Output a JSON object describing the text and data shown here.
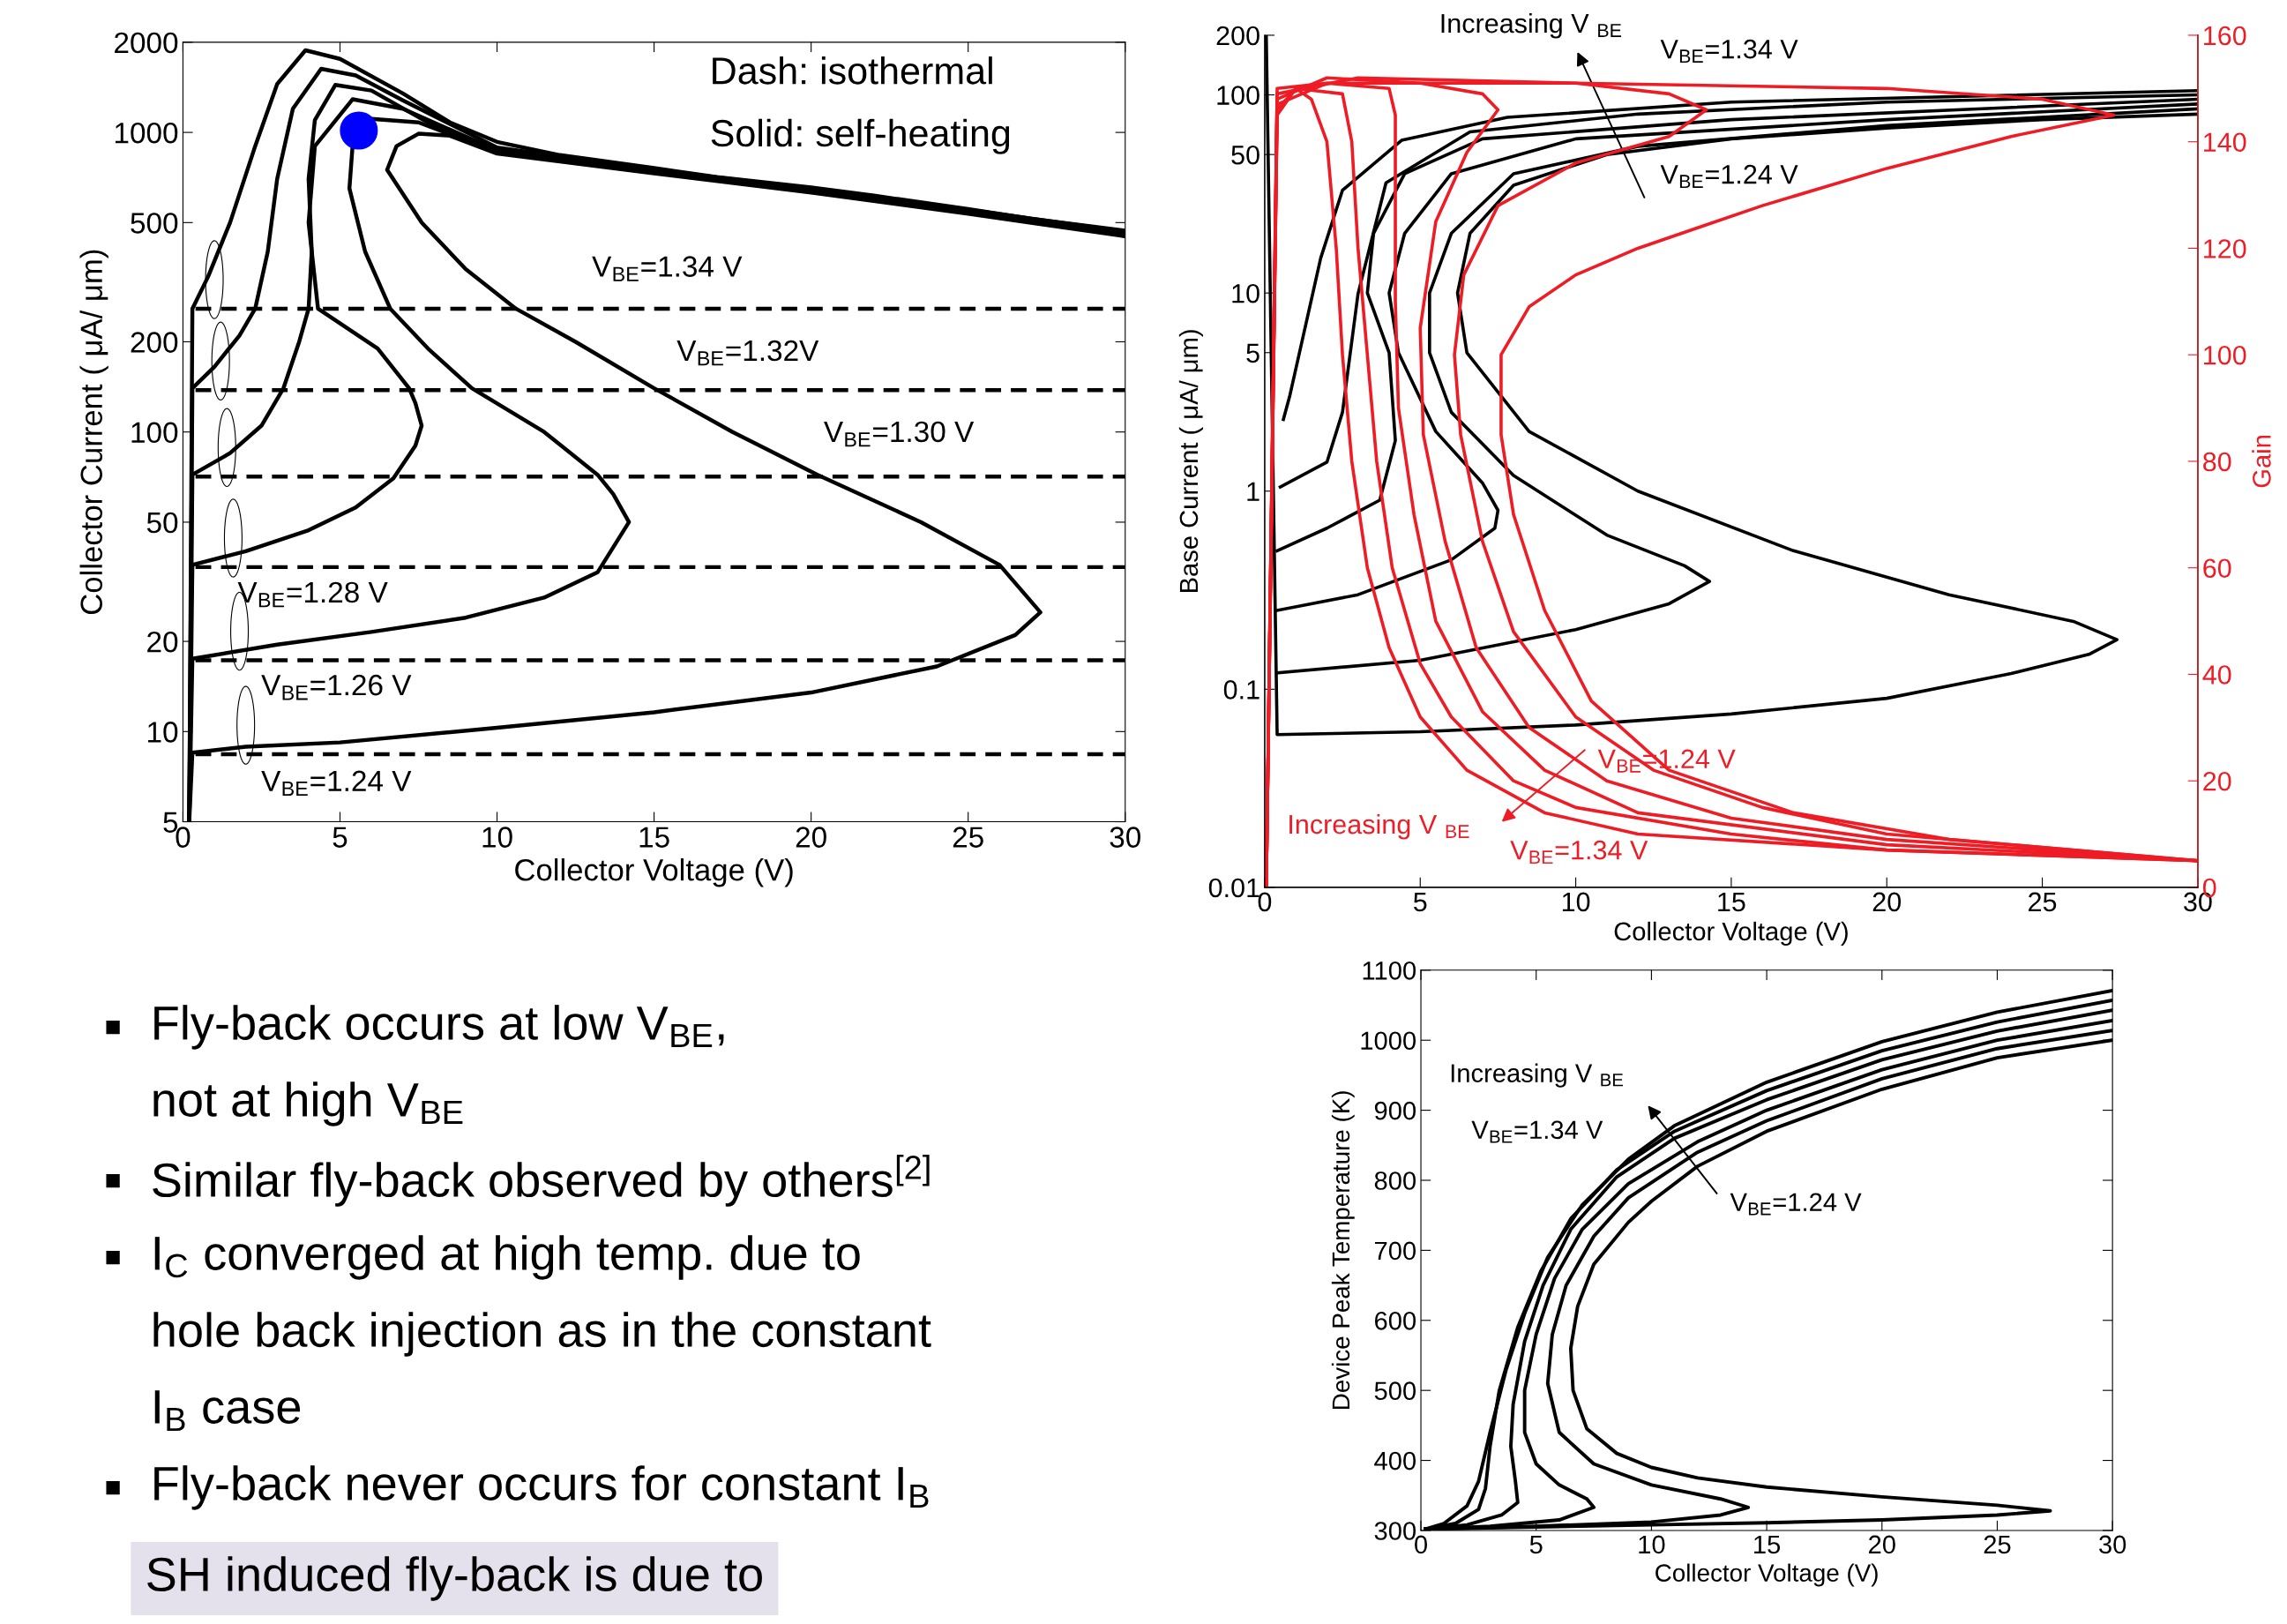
{
  "chart_data": [
    {
      "type": "line",
      "xlabel": "Collector Voltage (V)",
      "ylabel": "Collector Current ( μA/ μm)",
      "xlim": [
        0,
        30
      ],
      "xticks": [
        0,
        5,
        10,
        15,
        20,
        25,
        30
      ],
      "ylim": [
        5,
        2000
      ],
      "yticks": [
        5,
        10,
        20,
        50,
        100,
        200,
        500,
        1000,
        2000
      ],
      "log": "y",
      "grid": false,
      "legend": false,
      "marker": "none",
      "line_style": "solid",
      "series": [
        {
          "color": "#000000",
          "x": [
            0.2,
            0.3,
            2,
            5,
            10,
            15,
            20,
            24,
            26.5,
            27.3,
            26,
            23.5,
            20.2,
            17.5,
            15,
            12.5,
            10.6,
            9,
            7.6,
            6.5,
            6.8,
            7.5,
            8.5,
            10,
            15,
            20,
            25,
            30
          ],
          "values": [
            5,
            8.5,
            8.9,
            9.2,
            10.3,
            11.6,
            13.5,
            16.5,
            21,
            25,
            36,
            50,
            72,
            100,
            140,
            200,
            258,
            350,
            500,
            750,
            900,
            990,
            975,
            850,
            730,
            630,
            535,
            450
          ]
        },
        {
          "color": "#000000",
          "x": [
            0.2,
            0.3,
            3,
            6,
            9,
            11.5,
            13.2,
            14.2,
            13.7,
            13.2,
            11.5,
            9.2,
            7.8,
            6.6,
            5.8,
            5.3,
            5.4,
            6.0,
            7.5,
            10,
            15,
            20,
            25,
            30
          ],
          "values": [
            5,
            17.5,
            19.5,
            21.5,
            24,
            28,
            34,
            50,
            62,
            72,
            100,
            140,
            190,
            258,
            400,
            650,
            900,
            1110,
            1080,
            860,
            735,
            635,
            540,
            454
          ]
        },
        {
          "color": "#000000",
          "x": [
            0.2,
            0.3,
            2,
            4,
            5.5,
            6.7,
            7.4,
            7.6,
            7.4,
            7.2,
            6.2,
            4.3,
            4.0,
            4.2,
            5.4,
            7,
            10,
            15,
            20,
            25,
            30
          ],
          "values": [
            5,
            36,
            40,
            47,
            56,
            70,
            90,
            105,
            125,
            140,
            190,
            258,
            500,
            900,
            1290,
            1200,
            870,
            740,
            640,
            545,
            458
          ]
        },
        {
          "color": "#000000",
          "x": [
            0.2,
            0.3,
            1.5,
            2.5,
            3.2,
            3.7,
            4.0,
            4.1,
            4.0,
            4.2,
            4.85,
            6,
            8,
            10,
            15,
            20,
            25,
            30
          ],
          "values": [
            5,
            72,
            85,
            105,
            140,
            200,
            258,
            400,
            700,
            1100,
            1440,
            1380,
            1050,
            880,
            745,
            645,
            548,
            462
          ]
        },
        {
          "color": "#000000",
          "x": [
            0.2,
            0.3,
            1,
            1.8,
            2.3,
            2.7,
            3.0,
            3.5,
            4.4,
            5.5,
            7,
            10,
            15,
            20,
            25,
            30
          ],
          "values": [
            5,
            140,
            165,
            210,
            258,
            400,
            700,
            1200,
            1630,
            1550,
            1280,
            890,
            750,
            650,
            552,
            466
          ]
        },
        {
          "color": "#000000",
          "x": [
            0.2,
            0.3,
            0.8,
            1.5,
            2.3,
            3,
            3.9,
            5,
            7,
            8.5,
            10,
            12,
            15,
            17,
            20,
            22,
            25,
            27,
            30
          ],
          "values": [
            5,
            258,
            330,
            500,
            900,
            1450,
            1880,
            1760,
            1350,
            1080,
            930,
            840,
            760,
            710,
            655,
            615,
            555,
            515,
            470
          ]
        },
        {
          "color": "#000000",
          "line_style": "dashed",
          "x": [
            0.4,
            30
          ],
          "values": [
            8.4,
            8.4
          ]
        },
        {
          "color": "#000000",
          "line_style": "dashed",
          "x": [
            0.4,
            30
          ],
          "values": [
            17.3,
            17.3
          ]
        },
        {
          "color": "#000000",
          "line_style": "dashed",
          "x": [
            0.4,
            30
          ],
          "values": [
            35.4,
            35.4
          ]
        },
        {
          "color": "#000000",
          "line_style": "dashed",
          "x": [
            0.4,
            30
          ],
          "values": [
            71,
            71
          ]
        },
        {
          "color": "#000000",
          "line_style": "dashed",
          "x": [
            0.4,
            30
          ],
          "values": [
            138,
            138
          ]
        },
        {
          "color": "#000000",
          "line_style": "dashed",
          "x": [
            0.4,
            30
          ],
          "values": [
            258,
            258
          ]
        },
        {
          "type": "scatter",
          "color": "#0000ff",
          "marker": "circle",
          "x": [
            5.6
          ],
          "values": [
            1014
          ]
        }
      ],
      "annotations": [
        "V$_{BE}$=1.34 V",
        "V$_{BE}$=1.32V",
        "V$_{BE}$=1.30 V",
        "V$_{BE}$=1.28 V",
        "V$_{BE}$=1.26 V",
        "V$_{BE}$=1.24 V",
        "Dash: isothermal",
        "Solid: self-heating"
      ]
    },
    {
      "type": "line",
      "xlabel": "Collector Voltage (V)",
      "ylabel": "Base Current ( μA/ μm)",
      "y2label": "Gain",
      "xlim": [
        0,
        30
      ],
      "xticks": [
        0,
        5,
        10,
        15,
        20,
        25,
        30
      ],
      "ylim": [
        0.01,
        200
      ],
      "yticks": [
        0.01,
        0.1,
        1,
        5,
        10,
        50,
        100,
        200
      ],
      "log": "y",
      "y2lim": [
        0,
        160
      ],
      "y2ticks": [
        0,
        20,
        40,
        60,
        80,
        100,
        120,
        140,
        160
      ],
      "grid": false,
      "legend": false,
      "marker": "none",
      "line_style": "solid",
      "series": [
        {
          "color": "#000000",
          "x": [
            0.05,
            0.4,
            5,
            10,
            15,
            20,
            24,
            26.5,
            27.4,
            26,
            22,
            17,
            12,
            8.5,
            6.5,
            6.2,
            6.6,
            8,
            11,
            15,
            20,
            25,
            30
          ],
          "values": [
            200,
            0.059,
            0.061,
            0.066,
            0.075,
            0.09,
            0.12,
            0.15,
            0.178,
            0.22,
            0.3,
            0.5,
            1.0,
            2.0,
            5,
            10,
            20,
            35,
            50,
            60,
            68,
            75,
            80
          ]
        },
        {
          "color": "#000000",
          "x": [
            0.4,
            5,
            10,
            13,
            14.3,
            13.5,
            11,
            8,
            6,
            5.3,
            5.3,
            6,
            8,
            12,
            20,
            30
          ],
          "values": [
            0.121,
            0.14,
            0.2,
            0.27,
            0.35,
            0.42,
            0.6,
            1.2,
            2.5,
            5,
            10,
            20,
            40,
            55,
            70,
            85
          ]
        },
        {
          "color": "#000000",
          "x": [
            0.4,
            3,
            6,
            7.4,
            7.5,
            7,
            5.5,
            4.3,
            4.0,
            4.5,
            6,
            10,
            20,
            30
          ],
          "values": [
            0.25,
            0.3,
            0.45,
            0.65,
            0.8,
            1.1,
            2,
            5,
            10,
            20,
            40,
            60,
            75,
            90
          ]
        },
        {
          "color": "#000000",
          "x": [
            0.4,
            2,
            3.7,
            4.2,
            4.0,
            3.3,
            3.5,
            4.5,
            7,
            15,
            30
          ],
          "values": [
            0.5,
            0.65,
            0.9,
            1.8,
            5,
            10,
            20,
            40,
            60,
            75,
            95
          ]
        },
        {
          "color": "#000000",
          "x": [
            0.5,
            2,
            2.5,
            3.0,
            3.9,
            6.6,
            12,
            20,
            30
          ],
          "values": [
            1.05,
            1.4,
            2.5,
            9.9,
            36,
            65,
            80,
            92,
            100
          ]
        },
        {
          "color": "#000000",
          "x": [
            0.6,
            0.8,
            1.8,
            2.5,
            4.4,
            7.8,
            15,
            30
          ],
          "values": [
            2.3,
            3,
            15,
            33,
            59,
            77,
            92,
            105
          ]
        },
        {
          "color": "#ee1c25",
          "axis": "y2",
          "x": [
            0.05,
            0.4,
            2,
            10,
            20,
            25,
            27.3,
            24,
            20,
            16,
            14,
            12,
            10,
            8.5,
            7.6,
            7.6,
            8,
            9,
            10.5,
            13,
            17,
            22,
            30
          ],
          "values": [
            0,
            150,
            151,
            151,
            150,
            148,
            145,
            141,
            135,
            128,
            124,
            120,
            115,
            109,
            100,
            85,
            70,
            52,
            35,
            22,
            14,
            9,
            5
          ]
        },
        {
          "color": "#ee1c25",
          "axis": "y2",
          "x": [
            0.05,
            0.4,
            3,
            10,
            13,
            14.2,
            13,
            10,
            7.5,
            6.4,
            6.1,
            6.3,
            7,
            8,
            10,
            12.5,
            16,
            20,
            30
          ],
          "values": [
            0,
            149,
            152,
            151,
            149,
            146,
            141,
            136,
            128,
            115,
            100,
            85,
            65,
            48,
            32,
            22,
            15,
            10,
            5
          ]
        },
        {
          "color": "#ee1c25",
          "axis": "y2",
          "x": [
            0.05,
            0.4,
            2,
            5,
            7,
            7.5,
            6.5,
            5.5,
            5.0,
            5.1,
            5.8,
            6.8,
            8.5,
            11,
            15,
            20,
            30
          ],
          "values": [
            0,
            148,
            152,
            151,
            149,
            146,
            138,
            125,
            105,
            85,
            65,
            45,
            30,
            20,
            13,
            9,
            5
          ]
        },
        {
          "color": "#ee1c25",
          "axis": "y2",
          "x": [
            0.05,
            0.4,
            2,
            4,
            4.2,
            4.2,
            4.2,
            4.3,
            4.8,
            5.5,
            7,
            9,
            12,
            20,
            30
          ],
          "values": [
            0,
            147,
            151,
            150,
            145,
            130,
            110,
            90,
            70,
            50,
            33,
            22,
            14,
            8,
            5
          ]
        },
        {
          "color": "#ee1c25",
          "axis": "y2",
          "x": [
            0.05,
            0.4,
            1,
            2.5,
            2.8,
            3,
            3.3,
            3.6,
            4.1,
            5,
            6,
            8,
            10,
            15,
            20,
            30
          ],
          "values": [
            0,
            146,
            150,
            149,
            140,
            120,
            100,
            80,
            60,
            42,
            32,
            20,
            15,
            10,
            7,
            5
          ]
        },
        {
          "color": "#ee1c25",
          "axis": "y2",
          "x": [
            0.05,
            0.4,
            1,
            1.5,
            2,
            2.3,
            2.5,
            2.8,
            3.3,
            4,
            5,
            6.5,
            9,
            12,
            20,
            30
          ],
          "values": [
            0,
            145,
            150,
            148,
            140,
            120,
            100,
            80,
            60,
            45,
            32,
            22,
            14,
            10,
            7,
            5
          ]
        }
      ],
      "annotations": [
        "Increasing V $_{BE}$",
        "V$_{BE}$=1.34 V",
        "V$_{BE}$=1.24 V",
        "V$_{BE}$=1.24 V",
        "Increasing V $_{BE}$",
        "V$_{BE}$=1.34 V"
      ]
    },
    {
      "type": "line",
      "xlabel": "Collector Voltage (V)",
      "ylabel": "Device Peak Temperature (K)",
      "xlim": [
        0,
        30
      ],
      "xticks": [
        0,
        5,
        10,
        15,
        20,
        25,
        30
      ],
      "ylim": [
        300,
        1100
      ],
      "yticks": [
        300,
        400,
        500,
        600,
        700,
        800,
        900,
        1000,
        1100
      ],
      "grid": false,
      "legend": false,
      "marker": "none",
      "line_style": "solid",
      "series": [
        {
          "color": "#000000",
          "x": [
            0.2,
            5,
            10,
            15,
            20,
            25,
            27.3,
            25,
            20,
            15,
            12,
            10,
            8.5,
            7.2,
            6.6,
            6.5,
            6.8,
            7.5,
            9,
            10,
            12,
            15,
            20,
            25,
            30
          ],
          "values": [
            302,
            305,
            308,
            311,
            315,
            322,
            328,
            336,
            348,
            362,
            375,
            390,
            410,
            445,
            500,
            560,
            620,
            680,
            740,
            770,
            820,
            870,
            930,
            975,
            1000
          ]
        },
        {
          "color": "#000000",
          "x": [
            0.2,
            5,
            10,
            13,
            14.2,
            13,
            10,
            7.5,
            6,
            5.5,
            5.7,
            6.3,
            7.5,
            9,
            12,
            15,
            20,
            25,
            30
          ],
          "values": [
            302,
            306,
            312,
            322,
            333,
            345,
            365,
            395,
            440,
            510,
            580,
            650,
            720,
            775,
            840,
            885,
            945,
            988,
            1014
          ]
        },
        {
          "color": "#000000",
          "x": [
            0.2,
            3,
            6,
            7.5,
            7.2,
            6,
            5,
            4.5,
            4.5,
            5,
            5.8,
            7,
            9,
            12,
            15,
            20,
            25,
            30
          ],
          "values": [
            302,
            306,
            315,
            333,
            345,
            365,
            395,
            440,
            500,
            580,
            660,
            730,
            795,
            855,
            900,
            958,
            1000,
            1028
          ]
        },
        {
          "color": "#000000",
          "x": [
            0.2,
            2,
            3.5,
            4.2,
            4.1,
            3.9,
            4.0,
            4.5,
            5.3,
            6.5,
            8.5,
            11,
            15,
            20,
            25,
            30
          ],
          "values": [
            302,
            308,
            322,
            340,
            370,
            420,
            480,
            570,
            650,
            730,
            805,
            860,
            915,
            972,
            1013,
            1043
          ]
        },
        {
          "color": "#000000",
          "x": [
            0.2,
            1.5,
            2.5,
            2.8,
            3.0,
            3.4,
            4.2,
            5.2,
            6.5,
            8.5,
            11,
            15,
            20,
            25,
            30
          ],
          "values": [
            302,
            310,
            330,
            360,
            420,
            500,
            590,
            670,
            745,
            815,
            870,
            928,
            985,
            1026,
            1057
          ]
        },
        {
          "color": "#000000",
          "x": [
            0.2,
            1,
            2,
            2.5,
            3,
            3.7,
            4.5,
            5.5,
            7,
            9,
            11,
            15,
            20,
            25,
            30
          ],
          "values": [
            302,
            310,
            335,
            370,
            440,
            530,
            610,
            690,
            765,
            830,
            878,
            940,
            998,
            1040,
            1071
          ]
        }
      ],
      "annotations": [
        "Increasing V $_{BE}$",
        "V$_{BE}$=1.34 V",
        "V$_{BE}$=1.24 V"
      ]
    },
    {
      "type": "other",
      "annotations": [
        "Fly-back occurs at low V$_{BE}$,\nnot at high V$_{BE}$",
        "Similar fly-back observed by others$^{[2]}$",
        "I$_{C}$ converged at high temp. due to\nhole back injection as in the constant\nI$_{B}$ case",
        "Fly-back never occurs for constant I$_{B}$",
        "SH induced fly-back is due to"
      ]
    }
  ]
}
